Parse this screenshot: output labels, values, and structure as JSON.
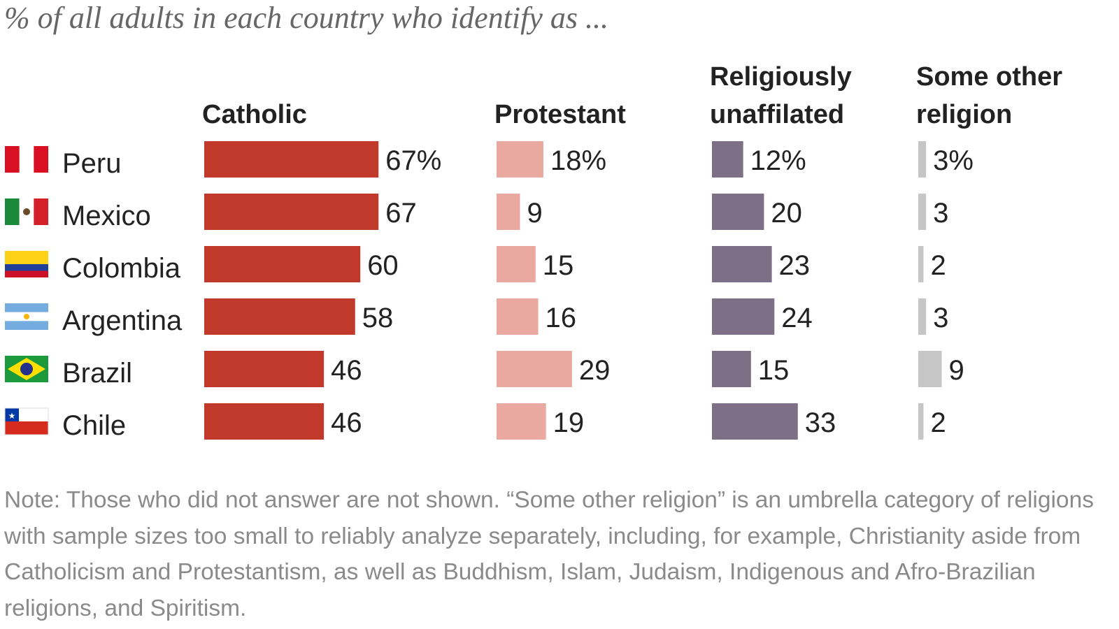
{
  "subtitle": "% of all adults in each country who identify as ...",
  "chart_data": {
    "type": "bar",
    "layout": "small-multiples-horizontal",
    "categories": [
      "Peru",
      "Mexico",
      "Colombia",
      "Argentina",
      "Brazil",
      "Chile"
    ],
    "series": [
      {
        "name": "Catholic",
        "header_lines": [
          "Catholic"
        ],
        "values": [
          67,
          67,
          60,
          58,
          46,
          46
        ],
        "color": "#c0392b"
      },
      {
        "name": "Protestant",
        "header_lines": [
          "Protestant"
        ],
        "values": [
          18,
          9,
          15,
          16,
          29,
          19
        ],
        "color": "#eaa9a0"
      },
      {
        "name": "Religiously unaffiliated",
        "header_lines": [
          "Religiously",
          "unaffilated"
        ],
        "values": [
          12,
          20,
          23,
          24,
          15,
          33
        ],
        "color": "#7d7086"
      },
      {
        "name": "Some other religion",
        "header_lines": [
          "Some other",
          "religion"
        ],
        "values": [
          3,
          3,
          2,
          3,
          9,
          2
        ],
        "color": "#c6c6c6"
      }
    ],
    "value_suffix_first_row": "%",
    "flags": [
      "peru-flag",
      "mexico-flag",
      "colombia-flag",
      "argentina-flag",
      "brazil-flag",
      "chile-flag"
    ]
  },
  "note": "Note: Those who did not answer are not shown. “Some other religion” is an umbrella category of religions with sample sizes too small to reliably analyze separately, including, for example, Christianity aside from Catholicism and Protestantism, as well as Buddhism, Islam, Judaism, Indigenous and Afro-Brazilian religions, and Spiritism."
}
